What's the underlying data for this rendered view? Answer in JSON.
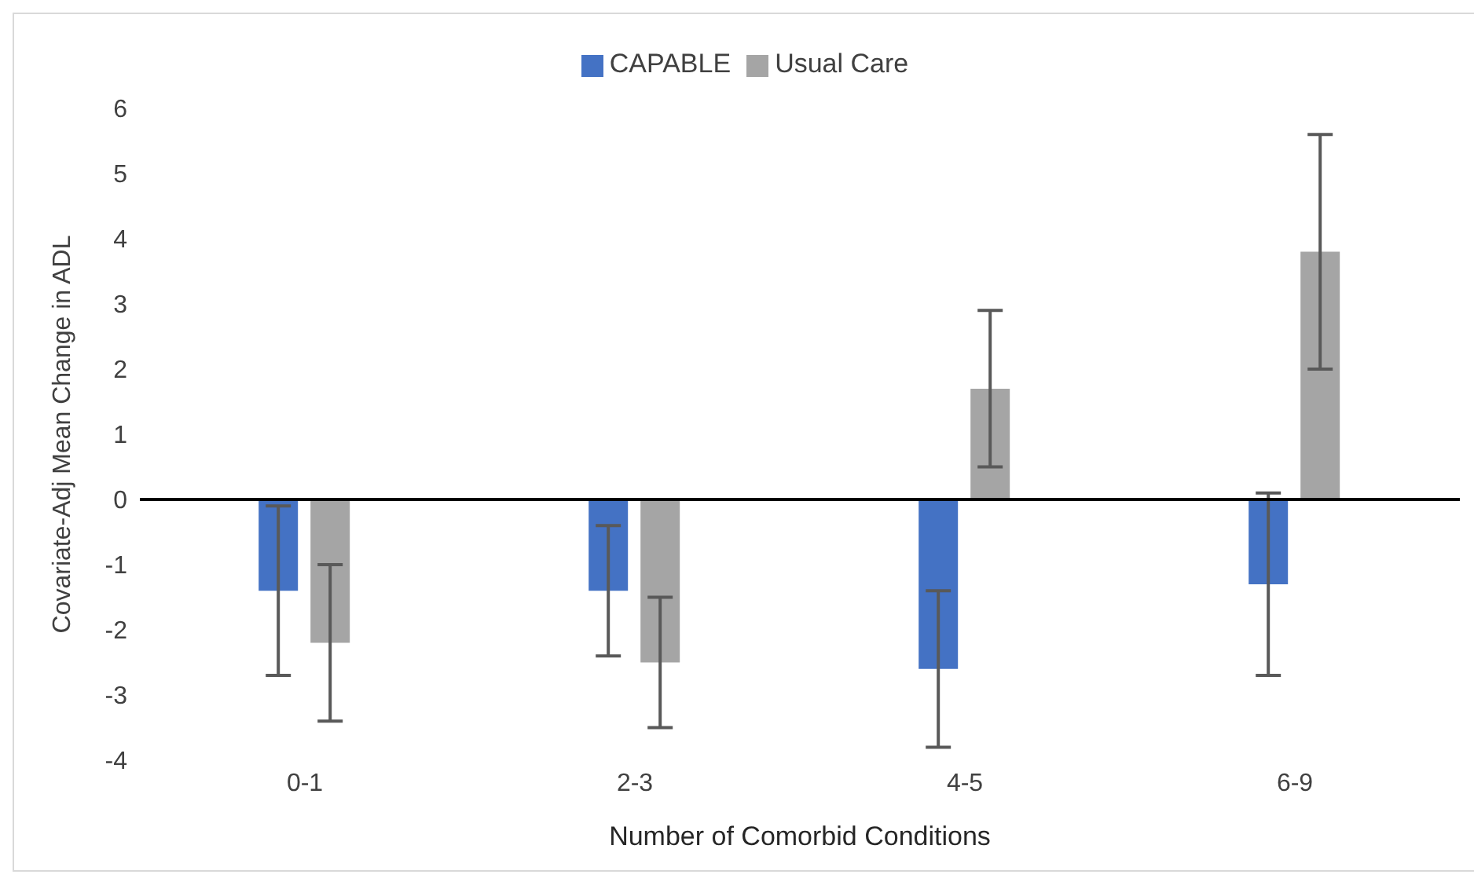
{
  "chart_data": {
    "type": "bar",
    "xlabel": "Number of Comorbid Conditions",
    "ylabel": "Covariate-Adj Mean Change in ADL",
    "categories": [
      "0-1",
      "2-3",
      "4-5",
      "6-9"
    ],
    "series": [
      {
        "name": "CAPABLE",
        "color": "#4472c4",
        "values": [
          -1.4,
          -1.4,
          -2.6,
          -1.3
        ],
        "errors": [
          1.3,
          1.0,
          1.2,
          1.4
        ]
      },
      {
        "name": "Usual Care",
        "color": "#a5a5a5",
        "values": [
          -2.2,
          -2.5,
          1.7,
          3.8
        ],
        "errors": [
          1.2,
          1.0,
          1.2,
          1.8
        ]
      }
    ],
    "ylim": [
      -4,
      6
    ],
    "yticks": [
      -4,
      -3,
      -2,
      -1,
      0,
      1,
      2,
      3,
      4,
      5,
      6
    ],
    "ref_lines": [
      {
        "axis": "y",
        "value": 0,
        "color": "#000000"
      }
    ],
    "legend": "top"
  }
}
